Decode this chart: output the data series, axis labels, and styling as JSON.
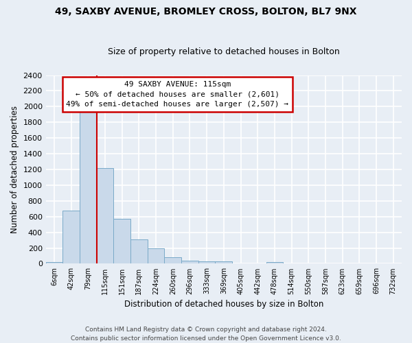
{
  "title1": "49, SAXBY AVENUE, BROMLEY CROSS, BOLTON, BL7 9NX",
  "title2": "Size of property relative to detached houses in Bolton",
  "xlabel": "Distribution of detached houses by size in Bolton",
  "ylabel": "Number of detached properties",
  "bin_labels": [
    "6sqm",
    "42sqm",
    "79sqm",
    "115sqm",
    "151sqm",
    "187sqm",
    "224sqm",
    "260sqm",
    "296sqm",
    "333sqm",
    "369sqm",
    "405sqm",
    "442sqm",
    "478sqm",
    "514sqm",
    "550sqm",
    "587sqm",
    "623sqm",
    "659sqm",
    "696sqm",
    "732sqm"
  ],
  "bar_values": [
    20,
    680,
    1950,
    1220,
    570,
    305,
    200,
    80,
    40,
    30,
    30,
    0,
    0,
    20,
    0,
    0,
    0,
    0,
    0,
    0,
    0
  ],
  "bar_color": "#c9d9ea",
  "bar_edge_color": "#7aaac8",
  "red_line_index": 3,
  "ylim": [
    0,
    2400
  ],
  "yticks": [
    0,
    200,
    400,
    600,
    800,
    1000,
    1200,
    1400,
    1600,
    1800,
    2000,
    2200,
    2400
  ],
  "annotation_title": "49 SAXBY AVENUE: 115sqm",
  "annotation_line1": "← 50% of detached houses are smaller (2,601)",
  "annotation_line2": "49% of semi-detached houses are larger (2,507) →",
  "annotation_box_facecolor": "#ffffff",
  "annotation_box_edgecolor": "#cc0000",
  "footnote1": "Contains HM Land Registry data © Crown copyright and database right 2024.",
  "footnote2": "Contains public sector information licensed under the Open Government Licence v3.0.",
  "background_color": "#e8eef5",
  "grid_color": "#ffffff",
  "fig_width": 6.0,
  "fig_height": 5.0,
  "dpi": 100
}
